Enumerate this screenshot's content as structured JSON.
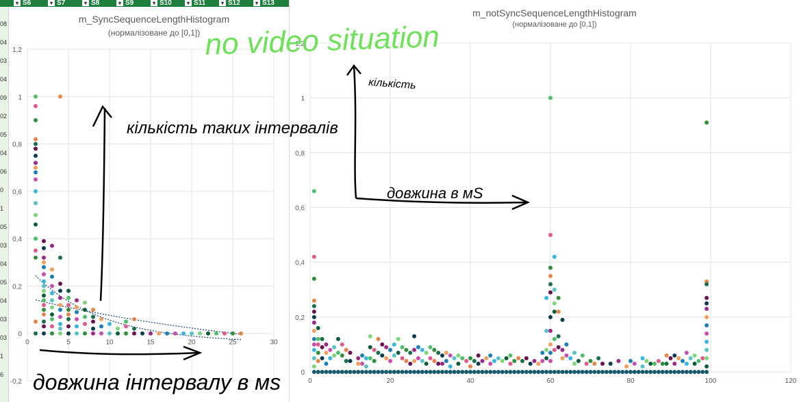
{
  "sheet": {
    "column_headers": [
      "S6",
      "S7",
      "S8",
      "S9",
      "S10",
      "S11",
      "S12",
      "S13"
    ],
    "row_fragments": [
      "08",
      "04",
      "03",
      "04",
      "09",
      "02",
      "05",
      "04",
      "06",
      "0",
      "1",
      "05",
      "03",
      "04",
      "05",
      "04",
      "03",
      "03",
      "1",
      "6"
    ]
  },
  "chart_data": [
    {
      "type": "scatter",
      "title": "m_SyncSequenceLengthHistogram",
      "subtitle": "(нормалізоване до [0,1])",
      "xlabel": "",
      "ylabel": "",
      "xlim": [
        0,
        30
      ],
      "ylim": [
        -0.2,
        1.2
      ],
      "xticks": [
        "0",
        "5",
        "10",
        "15",
        "20",
        "25",
        "30"
      ],
      "yticks": [
        "-0,2",
        "0",
        "0,2",
        "0,4",
        "0,6",
        "0,8",
        "1",
        "1,2"
      ],
      "grid": true,
      "trendline": "dotted-exponential",
      "points": [
        [
          1,
          1.0
        ],
        [
          1,
          0.96
        ],
        [
          1,
          0.9
        ],
        [
          1,
          0.82
        ],
        [
          1,
          0.8
        ],
        [
          1,
          0.78
        ],
        [
          1,
          0.75
        ],
        [
          1,
          0.72
        ],
        [
          1,
          0.7
        ],
        [
          1,
          0.68
        ],
        [
          1,
          0.65
        ],
        [
          1,
          0.6
        ],
        [
          1,
          0.55
        ],
        [
          1,
          0.5
        ],
        [
          1,
          0.46
        ],
        [
          1,
          0.4
        ],
        [
          1,
          0.35
        ],
        [
          1,
          0.32
        ],
        [
          1,
          0.05
        ],
        [
          1,
          0.0
        ],
        [
          2,
          0.39
        ],
        [
          2,
          0.36
        ],
        [
          2,
          0.32
        ],
        [
          2,
          0.3
        ],
        [
          2,
          0.28
        ],
        [
          2,
          0.25
        ],
        [
          2,
          0.22
        ],
        [
          2,
          0.2
        ],
        [
          2,
          0.18
        ],
        [
          2,
          0.16
        ],
        [
          2,
          0.14
        ],
        [
          2,
          0.12
        ],
        [
          2,
          0.1
        ],
        [
          2,
          0.08
        ],
        [
          2,
          0.05
        ],
        [
          2,
          0.03
        ],
        [
          2,
          0.0
        ],
        [
          3,
          0.37
        ],
        [
          3,
          0.27
        ],
        [
          3,
          0.24
        ],
        [
          3,
          0.2
        ],
        [
          3,
          0.17
        ],
        [
          3,
          0.14
        ],
        [
          3,
          0.11
        ],
        [
          3,
          0.08
        ],
        [
          3,
          0.06
        ],
        [
          3,
          0.03
        ],
        [
          3,
          0.0
        ],
        [
          4,
          1.0
        ],
        [
          4,
          0.32
        ],
        [
          4,
          0.21
        ],
        [
          4,
          0.18
        ],
        [
          4,
          0.15
        ],
        [
          4,
          0.12
        ],
        [
          4,
          0.1
        ],
        [
          4,
          0.07
        ],
        [
          4,
          0.04
        ],
        [
          4,
          0.02
        ],
        [
          4,
          0.0
        ],
        [
          5,
          0.18
        ],
        [
          5,
          0.15
        ],
        [
          5,
          0.12
        ],
        [
          5,
          0.1
        ],
        [
          5,
          0.08
        ],
        [
          5,
          0.06
        ],
        [
          5,
          0.03
        ],
        [
          5,
          0.0
        ],
        [
          6,
          0.14
        ],
        [
          6,
          0.11
        ],
        [
          6,
          0.09
        ],
        [
          6,
          0.06
        ],
        [
          6,
          0.03
        ],
        [
          6,
          0.0
        ],
        [
          7,
          0.13
        ],
        [
          7,
          0.1
        ],
        [
          7,
          0.07
        ],
        [
          7,
          0.04
        ],
        [
          7,
          0.0
        ],
        [
          8,
          0.1
        ],
        [
          8,
          0.07
        ],
        [
          8,
          0.05
        ],
        [
          8,
          0.02
        ],
        [
          8,
          0.0
        ],
        [
          9,
          0.06
        ],
        [
          9,
          0.03
        ],
        [
          9,
          0.0
        ],
        [
          10,
          0.04
        ],
        [
          10,
          0.0
        ],
        [
          11,
          0.02
        ],
        [
          11,
          0.0
        ],
        [
          12,
          0.05
        ],
        [
          12,
          0.03
        ],
        [
          12,
          0.0
        ],
        [
          13,
          0.06
        ],
        [
          13,
          0.02
        ],
        [
          13,
          0.0
        ],
        [
          14,
          0.0
        ],
        [
          15,
          0.0
        ],
        [
          16,
          0.0
        ],
        [
          17,
          0.0
        ],
        [
          18,
          0.0
        ],
        [
          19,
          0.0
        ],
        [
          20,
          0.0
        ],
        [
          21,
          0.0
        ],
        [
          22,
          0.0
        ],
        [
          23,
          0.0
        ],
        [
          24,
          0.0
        ],
        [
          25,
          0.0
        ],
        [
          26,
          0.0
        ]
      ]
    },
    {
      "type": "scatter",
      "title": "m_notSyncSequenceLengthHistogram",
      "subtitle": "(нормалізоване до [0,1])",
      "xlabel": "",
      "ylabel": "",
      "xlim": [
        0,
        120
      ],
      "ylim": [
        0,
        1.2
      ],
      "xticks": [
        "0",
        "20",
        "40",
        "60",
        "80",
        "100",
        "120"
      ],
      "yticks": [
        "0",
        "0,2",
        "0,4",
        "0,6",
        "0,8",
        "1",
        "1,2"
      ],
      "grid": true,
      "points": [
        [
          1,
          0.66
        ],
        [
          1,
          0.42
        ],
        [
          1,
          0.34
        ],
        [
          1,
          0.26
        ],
        [
          1,
          0.24
        ],
        [
          1,
          0.22
        ],
        [
          1,
          0.2
        ],
        [
          1,
          0.18
        ],
        [
          1,
          0.15
        ],
        [
          1,
          0.12
        ],
        [
          1,
          0.1
        ],
        [
          1,
          0.08
        ],
        [
          1,
          0.05
        ],
        [
          1,
          0.02
        ],
        [
          2,
          0.16
        ],
        [
          2,
          0.12
        ],
        [
          2,
          0.1
        ],
        [
          2,
          0.07
        ],
        [
          2,
          0.04
        ],
        [
          3,
          0.12
        ],
        [
          3,
          0.09
        ],
        [
          3,
          0.05
        ],
        [
          4,
          0.1
        ],
        [
          4,
          0.07
        ],
        [
          4,
          0.03
        ],
        [
          5,
          0.08
        ],
        [
          5,
          0.05
        ],
        [
          6,
          0.09
        ],
        [
          6,
          0.06
        ],
        [
          7,
          0.12
        ],
        [
          7,
          0.07
        ],
        [
          8,
          0.1
        ],
        [
          8,
          0.06
        ],
        [
          9,
          0.08
        ],
        [
          9,
          0.04
        ],
        [
          10,
          0.07
        ],
        [
          10,
          0.04
        ],
        [
          12,
          0.05
        ],
        [
          12,
          0.03
        ],
        [
          13,
          0.06
        ],
        [
          13,
          0.03
        ],
        [
          14,
          0.05
        ],
        [
          14,
          0.02
        ],
        [
          15,
          0.13
        ],
        [
          15,
          0.09
        ],
        [
          15,
          0.05
        ],
        [
          16,
          0.08
        ],
        [
          16,
          0.04
        ],
        [
          17,
          0.12
        ],
        [
          17,
          0.07
        ],
        [
          18,
          0.1
        ],
        [
          18,
          0.06
        ],
        [
          19,
          0.09
        ],
        [
          19,
          0.05
        ],
        [
          20,
          0.08
        ],
        [
          20,
          0.04
        ],
        [
          21,
          0.1
        ],
        [
          21,
          0.06
        ],
        [
          22,
          0.12
        ],
        [
          22,
          0.07
        ],
        [
          23,
          0.09
        ],
        [
          23,
          0.05
        ],
        [
          24,
          0.08
        ],
        [
          24,
          0.04
        ],
        [
          25,
          0.07
        ],
        [
          25,
          0.03
        ],
        [
          26,
          0.13
        ],
        [
          26,
          0.08
        ],
        [
          26,
          0.04
        ],
        [
          27,
          0.09
        ],
        [
          27,
          0.05
        ],
        [
          28,
          0.08
        ],
        [
          28,
          0.04
        ],
        [
          29,
          0.07
        ],
        [
          29,
          0.03
        ],
        [
          30,
          0.09
        ],
        [
          30,
          0.05
        ],
        [
          31,
          0.08
        ],
        [
          31,
          0.04
        ],
        [
          32,
          0.07
        ],
        [
          32,
          0.03
        ],
        [
          33,
          0.06
        ],
        [
          33,
          0.03
        ],
        [
          34,
          0.07
        ],
        [
          34,
          0.04
        ],
        [
          35,
          0.06
        ],
        [
          35,
          0.02
        ],
        [
          36,
          0.05
        ],
        [
          37,
          0.06
        ],
        [
          37,
          0.03
        ],
        [
          38,
          0.05
        ],
        [
          39,
          0.04
        ],
        [
          40,
          0.05
        ],
        [
          40,
          0.02
        ],
        [
          41,
          0.04
        ],
        [
          42,
          0.06
        ],
        [
          42,
          0.03
        ],
        [
          43,
          0.04
        ],
        [
          44,
          0.05
        ],
        [
          45,
          0.06
        ],
        [
          45,
          0.03
        ],
        [
          46,
          0.04
        ],
        [
          47,
          0.05
        ],
        [
          48,
          0.04
        ],
        [
          49,
          0.05
        ],
        [
          50,
          0.06
        ],
        [
          50,
          0.03
        ],
        [
          51,
          0.04
        ],
        [
          52,
          0.05
        ],
        [
          53,
          0.04
        ],
        [
          54,
          0.05
        ],
        [
          55,
          0.03
        ],
        [
          56,
          0.04
        ],
        [
          57,
          0.03
        ],
        [
          58,
          0.07
        ],
        [
          58,
          0.04
        ],
        [
          59,
          0.27
        ],
        [
          59,
          0.15
        ],
        [
          59,
          0.08
        ],
        [
          59,
          0.05
        ],
        [
          60,
          1.0
        ],
        [
          60,
          0.5
        ],
        [
          60,
          0.38
        ],
        [
          60,
          0.35
        ],
        [
          60,
          0.32
        ],
        [
          60,
          0.29
        ],
        [
          60,
          0.2
        ],
        [
          60,
          0.15
        ],
        [
          60,
          0.1
        ],
        [
          60,
          0.07
        ],
        [
          60,
          0.04
        ],
        [
          61,
          0.42
        ],
        [
          61,
          0.3
        ],
        [
          61,
          0.25
        ],
        [
          61,
          0.22
        ],
        [
          61,
          0.12
        ],
        [
          61,
          0.08
        ],
        [
          62,
          0.27
        ],
        [
          62,
          0.22
        ],
        [
          62,
          0.13
        ],
        [
          62,
          0.09
        ],
        [
          63,
          0.19
        ],
        [
          63,
          0.08
        ],
        [
          63,
          0.05
        ],
        [
          64,
          0.1
        ],
        [
          64,
          0.06
        ],
        [
          65,
          0.05
        ],
        [
          66,
          0.07
        ],
        [
          66,
          0.03
        ],
        [
          67,
          0.04
        ],
        [
          68,
          0.06
        ],
        [
          69,
          0.03
        ],
        [
          70,
          0.04
        ],
        [
          71,
          0.03
        ],
        [
          72,
          0.05
        ],
        [
          73,
          0.03
        ],
        [
          75,
          0.03
        ],
        [
          77,
          0.04
        ],
        [
          79,
          0.02
        ],
        [
          80,
          0.04
        ],
        [
          81,
          0.03
        ],
        [
          83,
          0.05
        ],
        [
          83,
          0.02
        ],
        [
          84,
          0.04
        ],
        [
          85,
          0.03
        ],
        [
          86,
          0.03
        ],
        [
          87,
          0.04
        ],
        [
          88,
          0.03
        ],
        [
          89,
          0.06
        ],
        [
          89,
          0.03
        ],
        [
          90,
          0.05
        ],
        [
          91,
          0.06
        ],
        [
          91,
          0.03
        ],
        [
          92,
          0.05
        ],
        [
          93,
          0.04
        ],
        [
          94,
          0.07
        ],
        [
          94,
          0.03
        ],
        [
          95,
          0.05
        ],
        [
          96,
          0.06
        ],
        [
          96,
          0.03
        ],
        [
          97,
          0.04
        ],
        [
          98,
          0.05
        ],
        [
          99,
          0.91
        ],
        [
          99,
          0.33
        ],
        [
          99,
          0.32
        ],
        [
          99,
          0.27
        ],
        [
          99,
          0.25
        ],
        [
          99,
          0.23
        ],
        [
          99,
          0.2
        ],
        [
          99,
          0.17
        ],
        [
          99,
          0.14
        ],
        [
          99,
          0.11
        ],
        [
          99,
          0.08
        ],
        [
          99,
          0.05
        ],
        [
          99,
          0.02
        ]
      ],
      "baseline_range": [
        1,
        99
      ]
    }
  ],
  "handwriting": {
    "top": "no video situation",
    "left_y": "кількість таких інтервалів",
    "left_x": "довжина інтервалу в мs",
    "right_y": "кількість",
    "right_x": "довжина в мS"
  },
  "palette": [
    "#0b3d4f",
    "#1a6e4a",
    "#2f8f3a",
    "#4fbf6a",
    "#7ed67a",
    "#38b5e0",
    "#1c7fb8",
    "#9b2a8a",
    "#6a1452",
    "#e8834a",
    "#e05a8a",
    "#0e5b38",
    "#5ac2c7",
    "#c84fb0",
    "#f0a05a"
  ],
  "colors": {
    "baseline": "#175a6c",
    "handwriting_green": "#6ee05a",
    "ink": "#000000",
    "trend": "#1e4e7a"
  }
}
